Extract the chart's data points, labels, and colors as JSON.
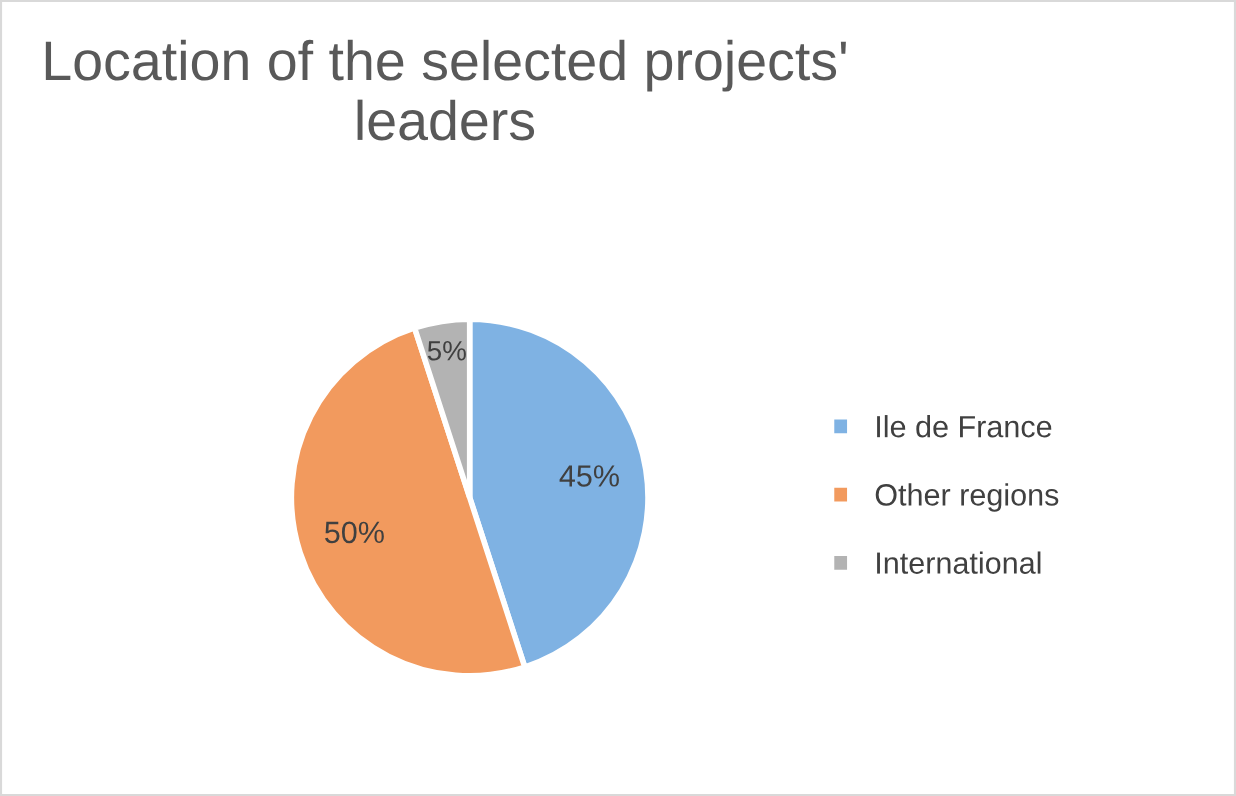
{
  "chart_data": {
    "type": "pie",
    "title": "Location of the selected projects' leaders",
    "categories": [
      "Ile de France",
      "Other regions",
      "International"
    ],
    "values": [
      45,
      50,
      5
    ],
    "colors": [
      "#7fb2e3",
      "#f29a5e",
      "#b3b3b3"
    ],
    "value_labels": [
      "45%",
      "50%",
      "5%"
    ],
    "legend": "right"
  }
}
